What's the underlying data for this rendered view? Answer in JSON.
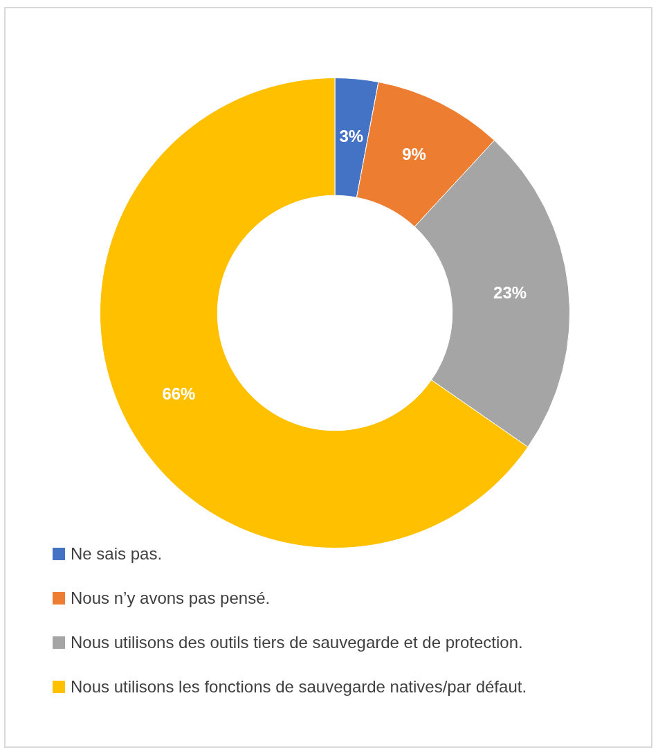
{
  "chart_data": {
    "type": "donut",
    "categories": [
      "Ne sais pas.",
      "Nous n’y avons pas pensé.",
      "Nous utilisons des outils tiers de sauvegarde et de protection.",
      "Nous utilisons les fonctions de sauvegarde natives/par défaut."
    ],
    "values": [
      3,
      9,
      23,
      66
    ],
    "colors": [
      "#4472c4",
      "#ed7d31",
      "#a5a5a5",
      "#ffc000"
    ],
    "value_labels": [
      "3%",
      "9%",
      "23%",
      "66%"
    ],
    "legend": "bottom"
  }
}
